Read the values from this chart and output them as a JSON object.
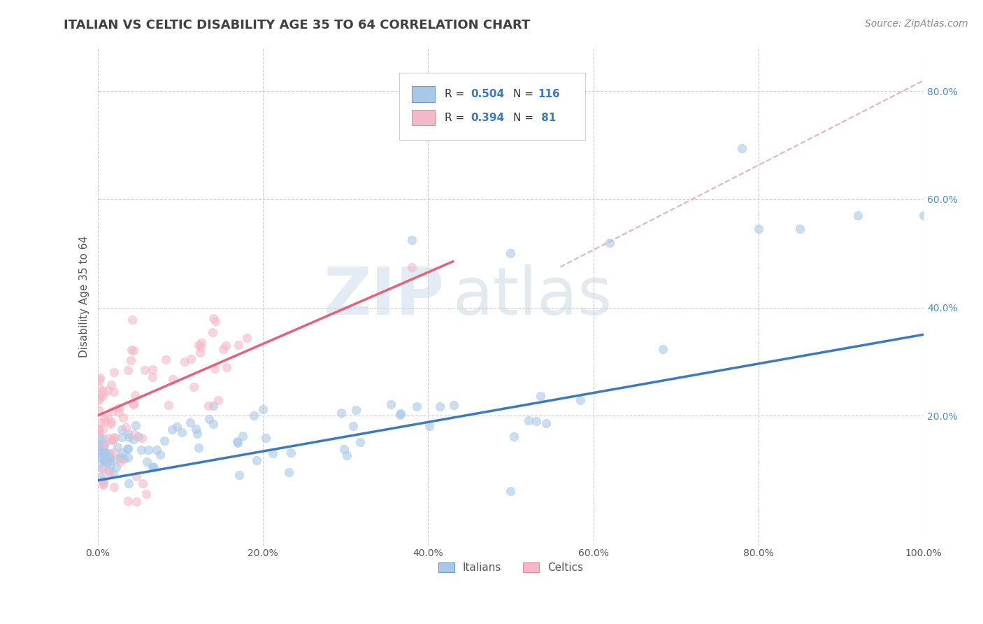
{
  "title": "ITALIAN VS CELTIC DISABILITY AGE 35 TO 64 CORRELATION CHART",
  "source_text": "Source: ZipAtlas.com",
  "ylabel": "Disability Age 35 to 64",
  "xlim": [
    0.0,
    1.0
  ],
  "ylim": [
    -0.04,
    0.88
  ],
  "italian_R": 0.504,
  "italian_N": 116,
  "celtic_R": 0.394,
  "celtic_N": 81,
  "italian_color": "#a8c8e8",
  "celtic_color": "#f5b8c8",
  "italian_line_color": "#3a7abf",
  "celtic_line_color": "#e8607a",
  "dashed_line_color": "#e8b0b8",
  "background_color": "#ffffff",
  "grid_color": "#cccccc",
  "title_color": "#404040",
  "watermark_zip_color": "#c8d8e8",
  "watermark_atlas_color": "#b0c8d8",
  "legend_R_color": "#3a7abf",
  "legend_N_color": "#3a7abf",
  "ytick_color": "#4a90c8",
  "xtick_labels": [
    "0.0%",
    "20.0%",
    "40.0%",
    "60.0%",
    "80.0%",
    "100.0%"
  ],
  "xtick_vals": [
    0.0,
    0.2,
    0.4,
    0.6,
    0.8,
    1.0
  ],
  "ytick_labels": [
    "20.0%",
    "40.0%",
    "60.0%",
    "80.0%"
  ],
  "ytick_vals": [
    0.2,
    0.4,
    0.6,
    0.8
  ],
  "italian_line_x0": 0.0,
  "italian_line_y0": 0.08,
  "italian_line_x1": 1.0,
  "italian_line_y1": 0.35,
  "celtic_line_x0": 0.0,
  "celtic_line_y0": 0.2,
  "celtic_line_x1": 0.43,
  "celtic_line_y1": 0.485,
  "dashed_line_x0": 0.56,
  "dashed_line_y0": 0.475,
  "dashed_line_x1": 1.0,
  "dashed_line_y1": 0.82
}
